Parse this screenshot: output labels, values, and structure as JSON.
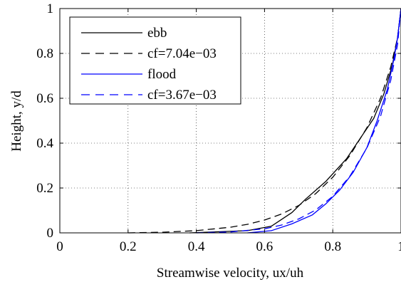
{
  "chart_data": {
    "type": "line",
    "title": "",
    "xlabel": "Streamwise velocity, ux/uh",
    "ylabel": "Height, y/d",
    "xlim": [
      0,
      1
    ],
    "ylim": [
      0,
      1
    ],
    "grid": true,
    "grid_style": "dotted",
    "legend_position": "top-left",
    "x_ticks": [
      {
        "value": 0,
        "label": "0"
      },
      {
        "value": 0.2,
        "label": "0.2"
      },
      {
        "value": 0.4,
        "label": "0.4"
      },
      {
        "value": 0.6,
        "label": "0.6"
      },
      {
        "value": 0.8,
        "label": "0.8"
      },
      {
        "value": 1,
        "label": "1"
      }
    ],
    "y_ticks": [
      {
        "value": 0,
        "label": "0"
      },
      {
        "value": 0.2,
        "label": "0.2"
      },
      {
        "value": 0.4,
        "label": "0.4"
      },
      {
        "value": 0.6,
        "label": "0.6"
      },
      {
        "value": 0.8,
        "label": "0.8"
      },
      {
        "value": 1,
        "label": "1"
      }
    ],
    "series": [
      {
        "name": "ebb",
        "color": "#000000",
        "style": "solid",
        "x": [
          0.38,
          0.55,
          0.62,
          0.68,
          0.72,
          0.78,
          0.84,
          0.88,
          0.92,
          0.95,
          0.975,
          0.99,
          1.0
        ],
        "y": [
          0.0,
          0.01,
          0.03,
          0.09,
          0.15,
          0.23,
          0.33,
          0.42,
          0.51,
          0.62,
          0.75,
          0.87,
          1.0
        ]
      },
      {
        "name": "cf=7.04e−03",
        "color": "#000000",
        "style": "dashed",
        "x": [
          0.2,
          0.3,
          0.4,
          0.5,
          0.55,
          0.6,
          0.65,
          0.7,
          0.75,
          0.8,
          0.85,
          0.9,
          0.94,
          0.97,
          0.99,
          1.0
        ],
        "y": [
          0.0,
          0.003,
          0.01,
          0.025,
          0.038,
          0.057,
          0.084,
          0.122,
          0.175,
          0.248,
          0.344,
          0.469,
          0.6,
          0.74,
          0.87,
          1.0
        ]
      },
      {
        "name": "flood",
        "color": "#0000ff",
        "style": "solid",
        "x": [
          0.55,
          0.62,
          0.68,
          0.74,
          0.78,
          0.82,
          0.86,
          0.9,
          0.93,
          0.96,
          0.98,
          0.99,
          1.0
        ],
        "y": [
          0.0,
          0.01,
          0.04,
          0.08,
          0.13,
          0.19,
          0.27,
          0.38,
          0.5,
          0.64,
          0.78,
          0.87,
          1.0
        ]
      },
      {
        "name": "cf=3.67e−03",
        "color": "#0000ff",
        "style": "dashed",
        "x": [
          0.4,
          0.5,
          0.6,
          0.65,
          0.7,
          0.75,
          0.8,
          0.85,
          0.9,
          0.94,
          0.97,
          0.99,
          1.0
        ],
        "y": [
          0.0,
          0.004,
          0.018,
          0.035,
          0.062,
          0.102,
          0.163,
          0.252,
          0.378,
          0.52,
          0.68,
          0.84,
          1.0
        ]
      }
    ]
  }
}
